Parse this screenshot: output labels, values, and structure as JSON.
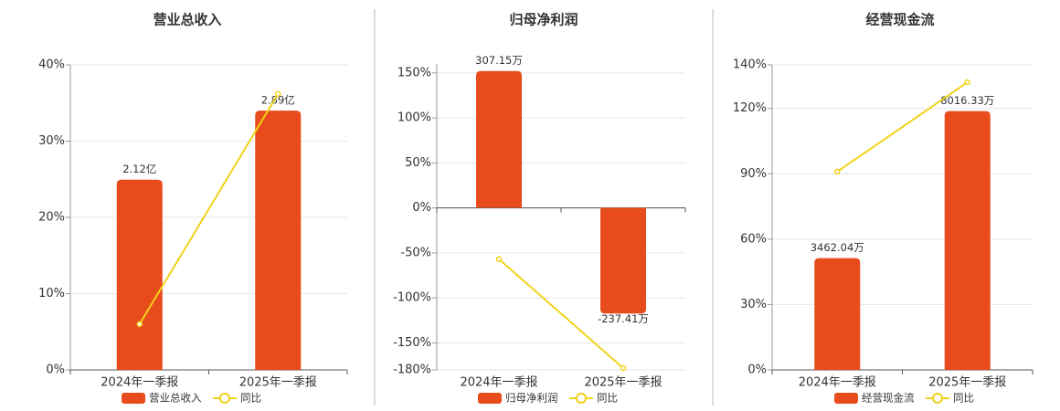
{
  "chart_data": [
    {
      "type": "bar",
      "title": "营业总收入",
      "categories": [
        "2024年一季报",
        "2025年一季报"
      ],
      "series": [
        {
          "name": "营业总收入",
          "color": "#e84c1c",
          "values": [
            2.12,
            2.89
          ],
          "value_labels": [
            "2.12亿",
            "2.89亿"
          ],
          "axis": "y2"
        },
        {
          "name": "同比",
          "type": "line",
          "color": "#f2d21a",
          "values": [
            6,
            36.2
          ]
        }
      ],
      "ylim": [
        0,
        40
      ],
      "yticks": [
        {
          "value": 0,
          "label": "0%"
        },
        {
          "value": 10,
          "label": "10%"
        },
        {
          "value": 20,
          "label": "20%"
        },
        {
          "value": 30,
          "label": "30%"
        },
        {
          "value": 40,
          "label": "40%"
        }
      ],
      "y2lim": [
        0,
        3.4
      ],
      "grid": true
    },
    {
      "type": "bar",
      "title": "归母净利润",
      "categories": [
        "2024年一季报",
        "2025年一季报"
      ],
      "series": [
        {
          "name": "归母净利润",
          "color": "#e84c1c",
          "values": [
            307.15,
            -237.41
          ],
          "value_labels": [
            "307.15万",
            "-237.41万"
          ],
          "axis": "y2"
        },
        {
          "name": "同比",
          "type": "line",
          "color": "#f2d21a",
          "values": [
            -57,
            -178
          ]
        }
      ],
      "ylim": [
        -180,
        160
      ],
      "yticks": [
        {
          "value": -180,
          "label": "-180%"
        },
        {
          "value": -150,
          "label": "-150%"
        },
        {
          "value": -100,
          "label": "-100%"
        },
        {
          "value": -50,
          "label": "-50%"
        },
        {
          "value": 0,
          "label": "0%"
        },
        {
          "value": 50,
          "label": "50%"
        },
        {
          "value": 100,
          "label": "100%"
        },
        {
          "value": 150,
          "label": "150%"
        }
      ],
      "y2lim": [
        -364,
        323
      ],
      "grid": true
    },
    {
      "type": "bar",
      "title": "经营现金流",
      "categories": [
        "2024年一季报",
        "2025年一季报"
      ],
      "series": [
        {
          "name": "经营现金流",
          "color": "#e84c1c",
          "values": [
            3462.04,
            8016.33
          ],
          "value_labels": [
            "3462.04万",
            "8016.33万"
          ],
          "axis": "y2"
        },
        {
          "name": "同比",
          "type": "line",
          "color": "#f2d21a",
          "values": [
            91,
            132
          ]
        }
      ],
      "ylim": [
        0,
        140
      ],
      "yticks": [
        {
          "value": 0,
          "label": "0%"
        },
        {
          "value": 30,
          "label": "30%"
        },
        {
          "value": 60,
          "label": "60%"
        },
        {
          "value": 90,
          "label": "90%"
        },
        {
          "value": 120,
          "label": "120%"
        },
        {
          "value": 140,
          "label": "140%"
        }
      ],
      "y2lim": [
        0,
        9450
      ],
      "grid": true
    }
  ]
}
